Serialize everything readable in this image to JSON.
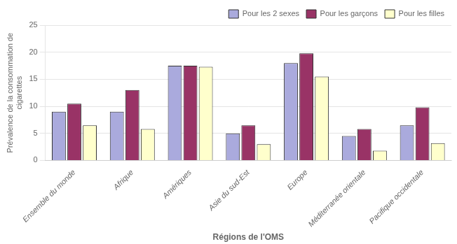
{
  "chart_data": {
    "type": "bar",
    "categories": [
      "Ensemble du monde",
      "Afrique",
      "Amériques",
      "Asie du sud-Est",
      "Europe",
      "Méditerranée orientale",
      "Pacifique occidentale"
    ],
    "series": [
      {
        "name": "Pour les 2 sexes",
        "color": "#aaaadd",
        "values": [
          9,
          9,
          17.5,
          5,
          18,
          4.5,
          6.5
        ]
      },
      {
        "name": "Pour les garçons",
        "color": "#993366",
        "values": [
          10.5,
          13,
          17.5,
          6.5,
          19.8,
          5.8,
          9.8
        ]
      },
      {
        "name": "Pour les filles",
        "color": "#ffffcc",
        "values": [
          6.5,
          5.8,
          17.3,
          3,
          15.5,
          1.8,
          3.2
        ]
      }
    ],
    "xlabel": "Régions de l'OMS",
    "ylabel": "Prévalence de la consommation de\ncigarettes",
    "ylim": [
      0,
      25
    ],
    "yticks": [
      0,
      5,
      10,
      15,
      20,
      25
    ],
    "grid": true,
    "legend": "upper right"
  }
}
